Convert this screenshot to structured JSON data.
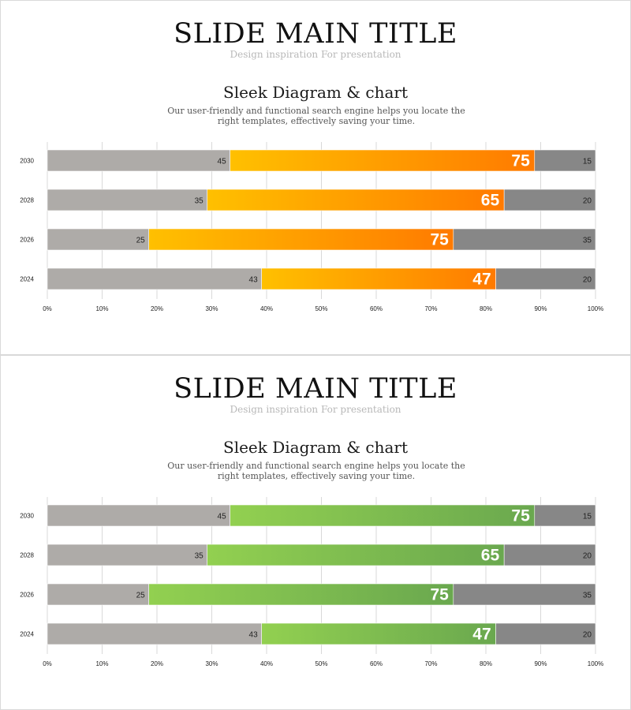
{
  "slides": [
    {
      "title": "SLIDE MAIN TITLE",
      "subtitle": "Design inspiration For presentation",
      "chart_title": "Sleek Diagram & chart",
      "chart_description": "Our user-friendly and functional search engine helps you locate the right templates, effectively saving your time.",
      "accent": {
        "start": "#ffc000",
        "end": "#ff7a00"
      }
    },
    {
      "title": "SLIDE MAIN TITLE",
      "subtitle": "Design inspiration For presentation",
      "chart_title": "Sleek Diagram & chart",
      "chart_description": "Our user-friendly and functional search engine helps you locate the right templates, effectively saving your time.",
      "accent": {
        "start": "#92d050",
        "end": "#6aa84f"
      }
    }
  ],
  "colors": {
    "left_segment": "#aeaba8",
    "right_segment": "#878787",
    "grid": "#d9d9d9"
  },
  "chart_data": [
    {
      "type": "bar",
      "orientation": "horizontal",
      "stacked": "percent",
      "categories": [
        "2030",
        "2028",
        "2026",
        "2024"
      ],
      "series": [
        {
          "name": "segment-1",
          "values": [
            45,
            35,
            25,
            43
          ]
        },
        {
          "name": "segment-2",
          "values": [
            75,
            65,
            75,
            47
          ]
        },
        {
          "name": "segment-3",
          "values": [
            15,
            20,
            35,
            20
          ]
        }
      ],
      "xticks": [
        "0%",
        "10%",
        "20%",
        "30%",
        "40%",
        "50%",
        "60%",
        "70%",
        "80%",
        "90%",
        "100%"
      ],
      "xlim": [
        0,
        100
      ],
      "title": "Sleek Diagram & chart"
    },
    {
      "type": "bar",
      "orientation": "horizontal",
      "stacked": "percent",
      "categories": [
        "2030",
        "2028",
        "2026",
        "2024"
      ],
      "series": [
        {
          "name": "segment-1",
          "values": [
            45,
            35,
            25,
            43
          ]
        },
        {
          "name": "segment-2",
          "values": [
            75,
            65,
            75,
            47
          ]
        },
        {
          "name": "segment-3",
          "values": [
            15,
            20,
            35,
            20
          ]
        }
      ],
      "xticks": [
        "0%",
        "10%",
        "20%",
        "30%",
        "40%",
        "50%",
        "60%",
        "70%",
        "80%",
        "90%",
        "100%"
      ],
      "xlim": [
        0,
        100
      ],
      "title": "Sleek Diagram & chart"
    }
  ]
}
